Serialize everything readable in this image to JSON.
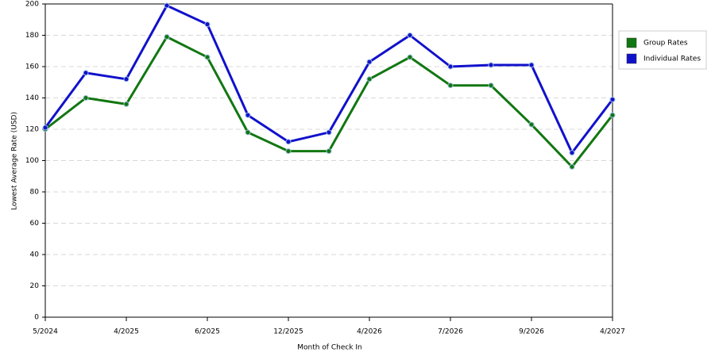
{
  "chart_data": {
    "type": "line",
    "x_label": "Month of Check In",
    "y_label": "Lowest Average Rate (USD)",
    "categories": [
      "5/2024",
      null,
      "4/2025",
      null,
      "6/2025",
      null,
      "12/2025",
      null,
      "4/2026",
      null,
      "7/2026",
      null,
      "9/2026",
      null,
      "4/2027"
    ],
    "series": [
      {
        "name": "Group Rates",
        "color": "#117711",
        "values": [
          120,
          140,
          136,
          179,
          166,
          118,
          106,
          106,
          152,
          166,
          148,
          148,
          123,
          96,
          129
        ]
      },
      {
        "name": "Individual Rates",
        "color": "#1111cc",
        "values": [
          121,
          156,
          152,
          199,
          187,
          129,
          112,
          118,
          163,
          180,
          160,
          161,
          161,
          105,
          139
        ]
      }
    ],
    "ylim": [
      0,
      200
    ],
    "yticks": [
      0,
      20,
      40,
      60,
      80,
      100,
      120,
      140,
      160,
      180,
      200
    ],
    "grid": true,
    "legend": "right"
  }
}
